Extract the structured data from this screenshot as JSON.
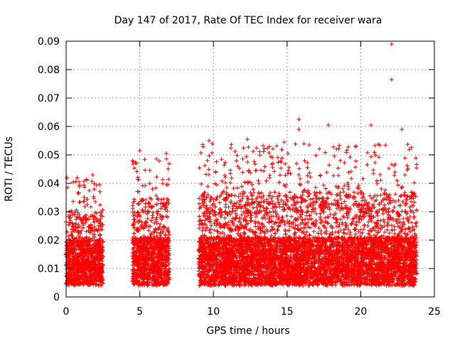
{
  "chart_data": {
    "type": "scatter",
    "title": "Day 147 of 2017, Rate Of TEC Index for receiver wara",
    "xlabel": "GPS time / hours",
    "ylabel": "ROTI / TECUs",
    "xlim": [
      0,
      25
    ],
    "ylim": [
      0,
      0.09
    ],
    "x_ticks": [
      "0",
      "5",
      "10",
      "15",
      "20",
      "25"
    ],
    "y_ticks": [
      "0",
      "0.01",
      "0.02",
      "0.03",
      "0.04",
      "0.05",
      "0.06",
      "0.07",
      "0.08",
      "0.09"
    ],
    "grid": true,
    "marker": "+",
    "color": "#ff0000",
    "series": [
      {
        "segments": [
          {
            "x": [
              0.0,
              2.5
            ],
            "typ": 0.012,
            "peak": 0.043
          },
          {
            "x": [
              4.5,
              7.0
            ],
            "typ": 0.013,
            "peak": 0.051
          },
          {
            "x": [
              9.0,
              23.8
            ],
            "typ": 0.013,
            "peak": 0.055
          }
        ],
        "outliers": [
          {
            "x": 22.1,
            "y": 0.089
          },
          {
            "x": 22.1,
            "y": 0.0765
          },
          {
            "x": 15.8,
            "y": 0.0625
          },
          {
            "x": 17.8,
            "y": 0.0605
          },
          {
            "x": 20.7,
            "y": 0.0605
          },
          {
            "x": 22.8,
            "y": 0.059
          },
          {
            "x": 15.8,
            "y": 0.059
          },
          {
            "x": 9.7,
            "y": 0.055
          },
          {
            "x": 12.3,
            "y": 0.0555
          },
          {
            "x": 5.0,
            "y": 0.0515
          },
          {
            "x": 6.8,
            "y": 0.0505
          },
          {
            "x": 16.5,
            "y": 0.0535
          },
          {
            "x": 14.8,
            "y": 0.0545
          },
          {
            "x": 0.1,
            "y": 0.0385
          },
          {
            "x": 1.8,
            "y": 0.043
          }
        ]
      }
    ]
  }
}
